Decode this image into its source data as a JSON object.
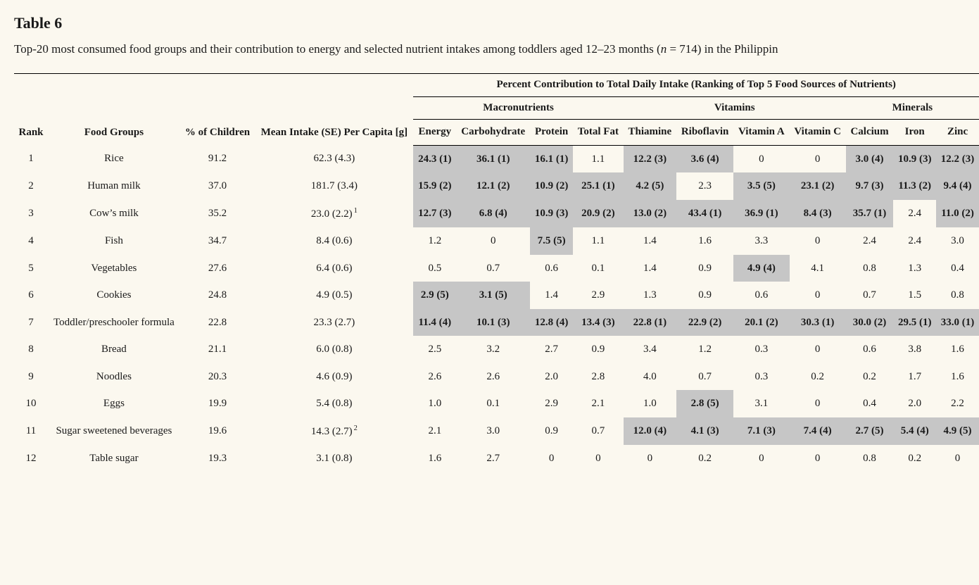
{
  "title": "Table 6",
  "caption_prefix": "Top-20 most consumed food groups and their contribution to energy and selected nutrient intakes among toddlers aged 12–23 months (",
  "caption_n_label": "n",
  "caption_n_value": " = 714) in the Philippin",
  "spanner": "Percent Contribution to Total Daily Intake (Ranking of Top 5 Food Sources of Nutrients)",
  "group_macro": "Macronutrients",
  "group_vit": "Vitamins",
  "group_min": "Minerals",
  "col_rank": "Rank",
  "col_food": "Food Groups",
  "col_pct": "% of Children",
  "col_intake": "Mean Intake (SE) Per Capita [g]",
  "col_energy": "Energy",
  "col_carb": "Carbohydrate",
  "col_protein": "Protein",
  "col_fat": "Total Fat",
  "col_thia": "Thiamine",
  "col_ribo": "Riboflavin",
  "col_vita": "Vitamin A",
  "col_vitc": "Vitamin C",
  "col_calc": "Calcium",
  "col_iron": "Iron",
  "col_zinc": "Zinc",
  "rows": [
    {
      "rank": "1",
      "food": "Rice",
      "pct": "91.2",
      "intake": "62.3 (4.3)",
      "sup": "",
      "cells": [
        {
          "v": "24.3 (1)",
          "h": true
        },
        {
          "v": "36.1 (1)",
          "h": true
        },
        {
          "v": "16.1 (1)",
          "h": true
        },
        {
          "v": "1.1",
          "h": false
        },
        {
          "v": "12.2 (3)",
          "h": true
        },
        {
          "v": "3.6 (4)",
          "h": true
        },
        {
          "v": "0",
          "h": false
        },
        {
          "v": "0",
          "h": false
        },
        {
          "v": "3.0 (4)",
          "h": true
        },
        {
          "v": "10.9 (3)",
          "h": true
        },
        {
          "v": "12.2 (3)",
          "h": true
        }
      ]
    },
    {
      "rank": "2",
      "food": "Human milk",
      "pct": "37.0",
      "intake": "181.7 (3.4)",
      "sup": "",
      "cells": [
        {
          "v": "15.9 (2)",
          "h": true
        },
        {
          "v": "12.1 (2)",
          "h": true
        },
        {
          "v": "10.9 (2)",
          "h": true
        },
        {
          "v": "25.1 (1)",
          "h": true
        },
        {
          "v": "4.2 (5)",
          "h": true
        },
        {
          "v": "2.3",
          "h": false
        },
        {
          "v": "3.5 (5)",
          "h": true
        },
        {
          "v": "23.1 (2)",
          "h": true
        },
        {
          "v": "9.7 (3)",
          "h": true
        },
        {
          "v": "11.3 (2)",
          "h": true
        },
        {
          "v": "9.4 (4)",
          "h": true
        }
      ]
    },
    {
      "rank": "3",
      "food": "Cow’s milk",
      "pct": "35.2",
      "intake": "23.0 (2.2)",
      "sup": "1",
      "cells": [
        {
          "v": "12.7 (3)",
          "h": true
        },
        {
          "v": "6.8 (4)",
          "h": true
        },
        {
          "v": "10.9 (3)",
          "h": true
        },
        {
          "v": "20.9 (2)",
          "h": true
        },
        {
          "v": "13.0 (2)",
          "h": true
        },
        {
          "v": "43.4 (1)",
          "h": true
        },
        {
          "v": "36.9 (1)",
          "h": true
        },
        {
          "v": "8.4 (3)",
          "h": true
        },
        {
          "v": "35.7 (1)",
          "h": true
        },
        {
          "v": "2.4",
          "h": false
        },
        {
          "v": "11.0 (2)",
          "h": true
        }
      ]
    },
    {
      "rank": "4",
      "food": "Fish",
      "pct": "34.7",
      "intake": "8.4 (0.6)",
      "sup": "",
      "cells": [
        {
          "v": "1.2",
          "h": false
        },
        {
          "v": "0",
          "h": false
        },
        {
          "v": "7.5 (5)",
          "h": true
        },
        {
          "v": "1.1",
          "h": false
        },
        {
          "v": "1.4",
          "h": false
        },
        {
          "v": "1.6",
          "h": false
        },
        {
          "v": "3.3",
          "h": false
        },
        {
          "v": "0",
          "h": false
        },
        {
          "v": "2.4",
          "h": false
        },
        {
          "v": "2.4",
          "h": false
        },
        {
          "v": "3.0",
          "h": false
        }
      ]
    },
    {
      "rank": "5",
      "food": "Vegetables",
      "pct": "27.6",
      "intake": "6.4 (0.6)",
      "sup": "",
      "cells": [
        {
          "v": "0.5",
          "h": false
        },
        {
          "v": "0.7",
          "h": false
        },
        {
          "v": "0.6",
          "h": false
        },
        {
          "v": "0.1",
          "h": false
        },
        {
          "v": "1.4",
          "h": false
        },
        {
          "v": "0.9",
          "h": false
        },
        {
          "v": "4.9 (4)",
          "h": true
        },
        {
          "v": "4.1",
          "h": false
        },
        {
          "v": "0.8",
          "h": false
        },
        {
          "v": "1.3",
          "h": false
        },
        {
          "v": "0.4",
          "h": false
        }
      ]
    },
    {
      "rank": "6",
      "food": "Cookies",
      "pct": "24.8",
      "intake": "4.9 (0.5)",
      "sup": "",
      "cells": [
        {
          "v": "2.9 (5)",
          "h": true
        },
        {
          "v": "3.1 (5)",
          "h": true
        },
        {
          "v": "1.4",
          "h": false
        },
        {
          "v": "2.9",
          "h": false
        },
        {
          "v": "1.3",
          "h": false
        },
        {
          "v": "0.9",
          "h": false
        },
        {
          "v": "0.6",
          "h": false
        },
        {
          "v": "0",
          "h": false
        },
        {
          "v": "0.7",
          "h": false
        },
        {
          "v": "1.5",
          "h": false
        },
        {
          "v": "0.8",
          "h": false
        }
      ]
    },
    {
      "rank": "7",
      "food": "Toddler/preschooler formula",
      "pct": "22.8",
      "intake": "23.3 (2.7)",
      "sup": "",
      "cells": [
        {
          "v": "11.4 (4)",
          "h": true
        },
        {
          "v": "10.1 (3)",
          "h": true
        },
        {
          "v": "12.8 (4)",
          "h": true
        },
        {
          "v": "13.4 (3)",
          "h": true
        },
        {
          "v": "22.8 (1)",
          "h": true
        },
        {
          "v": "22.9 (2)",
          "h": true
        },
        {
          "v": "20.1 (2)",
          "h": true
        },
        {
          "v": "30.3 (1)",
          "h": true
        },
        {
          "v": "30.0 (2)",
          "h": true
        },
        {
          "v": "29.5 (1)",
          "h": true
        },
        {
          "v": "33.0 (1)",
          "h": true
        }
      ]
    },
    {
      "rank": "8",
      "food": "Bread",
      "pct": "21.1",
      "intake": "6.0 (0.8)",
      "sup": "",
      "cells": [
        {
          "v": "2.5",
          "h": false
        },
        {
          "v": "3.2",
          "h": false
        },
        {
          "v": "2.7",
          "h": false
        },
        {
          "v": "0.9",
          "h": false
        },
        {
          "v": "3.4",
          "h": false
        },
        {
          "v": "1.2",
          "h": false
        },
        {
          "v": "0.3",
          "h": false
        },
        {
          "v": "0",
          "h": false
        },
        {
          "v": "0.6",
          "h": false
        },
        {
          "v": "3.8",
          "h": false
        },
        {
          "v": "1.6",
          "h": false
        }
      ]
    },
    {
      "rank": "9",
      "food": "Noodles",
      "pct": "20.3",
      "intake": "4.6 (0.9)",
      "sup": "",
      "cells": [
        {
          "v": "2.6",
          "h": false
        },
        {
          "v": "2.6",
          "h": false
        },
        {
          "v": "2.0",
          "h": false
        },
        {
          "v": "2.8",
          "h": false
        },
        {
          "v": "4.0",
          "h": false
        },
        {
          "v": "0.7",
          "h": false
        },
        {
          "v": "0.3",
          "h": false
        },
        {
          "v": "0.2",
          "h": false
        },
        {
          "v": "0.2",
          "h": false
        },
        {
          "v": "1.7",
          "h": false
        },
        {
          "v": "1.6",
          "h": false
        }
      ]
    },
    {
      "rank": "10",
      "food": "Eggs",
      "pct": "19.9",
      "intake": "5.4 (0.8)",
      "sup": "",
      "cells": [
        {
          "v": "1.0",
          "h": false
        },
        {
          "v": "0.1",
          "h": false
        },
        {
          "v": "2.9",
          "h": false
        },
        {
          "v": "2.1",
          "h": false
        },
        {
          "v": "1.0",
          "h": false
        },
        {
          "v": "2.8 (5)",
          "h": true
        },
        {
          "v": "3.1",
          "h": false
        },
        {
          "v": "0",
          "h": false
        },
        {
          "v": "0.4",
          "h": false
        },
        {
          "v": "2.0",
          "h": false
        },
        {
          "v": "2.2",
          "h": false
        }
      ]
    },
    {
      "rank": "11",
      "food": "Sugar sweetened beverages",
      "pct": "19.6",
      "intake": "14.3 (2.7)",
      "sup": "2",
      "cells": [
        {
          "v": "2.1",
          "h": false
        },
        {
          "v": "3.0",
          "h": false
        },
        {
          "v": "0.9",
          "h": false
        },
        {
          "v": "0.7",
          "h": false
        },
        {
          "v": "12.0 (4)",
          "h": true
        },
        {
          "v": "4.1 (3)",
          "h": true
        },
        {
          "v": "7.1 (3)",
          "h": true
        },
        {
          "v": "7.4 (4)",
          "h": true
        },
        {
          "v": "2.7 (5)",
          "h": true
        },
        {
          "v": "5.4 (4)",
          "h": true
        },
        {
          "v": "4.9 (5)",
          "h": true
        }
      ]
    },
    {
      "rank": "12",
      "food": "Table sugar",
      "pct": "19.3",
      "intake": "3.1 (0.8)",
      "sup": "",
      "cells": [
        {
          "v": "1.6",
          "h": false
        },
        {
          "v": "2.7",
          "h": false
        },
        {
          "v": "0",
          "h": false
        },
        {
          "v": "0",
          "h": false
        },
        {
          "v": "0",
          "h": false
        },
        {
          "v": "0.2",
          "h": false
        },
        {
          "v": "0",
          "h": false
        },
        {
          "v": "0",
          "h": false
        },
        {
          "v": "0.8",
          "h": false
        },
        {
          "v": "0.2",
          "h": false
        },
        {
          "v": "0",
          "h": false
        }
      ]
    }
  ]
}
